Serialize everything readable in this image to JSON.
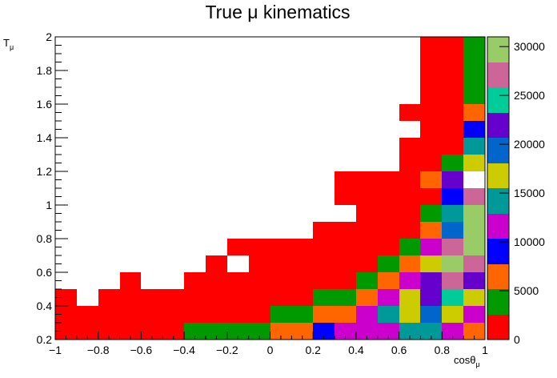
{
  "chart_data": {
    "type": "heatmap",
    "title": "True μ kinematics",
    "xlabel": {
      "main": "cosθ",
      "sub": "μ"
    },
    "ylabel": {
      "main": "T",
      "sub": "μ"
    },
    "xlim": [
      -1,
      1
    ],
    "ylim": [
      0.2,
      2
    ],
    "x_bins": 20,
    "y_bins": 18,
    "x_ticks": [
      -1,
      -0.8,
      -0.6,
      -0.4,
      -0.2,
      0,
      0.2,
      0.4,
      0.6,
      0.8,
      1
    ],
    "y_ticks": [
      0.2,
      0.4,
      0.6,
      0.8,
      1,
      1.2,
      1.4,
      1.6,
      1.8,
      2
    ],
    "x_tick_labels": [
      "−1",
      "−0.8",
      "−0.6",
      "−0.4",
      "−0.2",
      "0",
      "0.2",
      "0.4",
      "0.6",
      "0.8",
      "1"
    ],
    "y_tick_labels": [
      "0.2",
      "0.4",
      "0.6",
      "0.8",
      "1",
      "1.2",
      "1.4",
      "1.6",
      "1.8",
      "2"
    ],
    "zlim": [
      0,
      31000
    ],
    "z_ticks": [
      0,
      5000,
      10000,
      15000,
      20000,
      25000,
      30000
    ],
    "z_tick_labels": [
      "0",
      "5000",
      "10000",
      "15000",
      "20000",
      "25000",
      "30000"
    ],
    "palette": [
      "#ff0000",
      "#009900",
      "#ff6600",
      "#0000ff",
      "#cc00cc",
      "#009999",
      "#cccc00",
      "#0066cc",
      "#6600cc",
      "#00cc99",
      "#cc6699",
      "#99cc66"
    ],
    "cells_note": "cells listed row by row from bottom (y bin 0) to top; each row lists [x bin index, color level]",
    "rows": [
      [
        [
          0,
          0
        ],
        [
          1,
          0
        ],
        [
          2,
          0
        ],
        [
          3,
          0
        ],
        [
          4,
          0
        ],
        [
          5,
          0
        ],
        [
          6,
          1
        ],
        [
          7,
          1
        ],
        [
          8,
          1
        ],
        [
          9,
          1
        ],
        [
          10,
          2
        ],
        [
          11,
          2
        ],
        [
          12,
          3
        ],
        [
          13,
          4
        ],
        [
          14,
          4
        ],
        [
          15,
          4
        ],
        [
          16,
          5
        ],
        [
          17,
          5
        ],
        [
          18,
          4
        ],
        [
          19,
          2
        ]
      ],
      [
        [
          0,
          0
        ],
        [
          1,
          0
        ],
        [
          2,
          0
        ],
        [
          3,
          0
        ],
        [
          4,
          0
        ],
        [
          5,
          0
        ],
        [
          6,
          0
        ],
        [
          7,
          0
        ],
        [
          8,
          0
        ],
        [
          9,
          0
        ],
        [
          10,
          1
        ],
        [
          11,
          1
        ],
        [
          12,
          2
        ],
        [
          13,
          2
        ],
        [
          14,
          4
        ],
        [
          15,
          5
        ],
        [
          16,
          6
        ],
        [
          17,
          7
        ],
        [
          18,
          6
        ],
        [
          19,
          4
        ]
      ],
      [
        [
          0,
          0
        ],
        [
          2,
          0
        ],
        [
          3,
          0
        ],
        [
          4,
          0
        ],
        [
          5,
          0
        ],
        [
          6,
          0
        ],
        [
          7,
          0
        ],
        [
          8,
          0
        ],
        [
          9,
          0
        ],
        [
          10,
          0
        ],
        [
          11,
          0
        ],
        [
          12,
          1
        ],
        [
          13,
          1
        ],
        [
          14,
          2
        ],
        [
          15,
          4
        ],
        [
          16,
          6
        ],
        [
          17,
          8
        ],
        [
          18,
          9
        ],
        [
          19,
          6
        ]
      ],
      [
        [
          3,
          0
        ],
        [
          6,
          0
        ],
        [
          7,
          0
        ],
        [
          8,
          0
        ],
        [
          9,
          0
        ],
        [
          10,
          0
        ],
        [
          11,
          0
        ],
        [
          12,
          0
        ],
        [
          13,
          0
        ],
        [
          14,
          1
        ],
        [
          15,
          2
        ],
        [
          16,
          4
        ],
        [
          17,
          8
        ],
        [
          18,
          10
        ],
        [
          19,
          8
        ]
      ],
      [
        [
          7,
          0
        ],
        [
          9,
          0
        ],
        [
          10,
          0
        ],
        [
          11,
          0
        ],
        [
          12,
          0
        ],
        [
          13,
          0
        ],
        [
          14,
          0
        ],
        [
          15,
          1
        ],
        [
          16,
          2
        ],
        [
          17,
          6
        ],
        [
          18,
          11
        ],
        [
          19,
          10
        ]
      ],
      [
        [
          8,
          0
        ],
        [
          9,
          0
        ],
        [
          10,
          0
        ],
        [
          11,
          0
        ],
        [
          12,
          0
        ],
        [
          13,
          0
        ],
        [
          14,
          0
        ],
        [
          15,
          0
        ],
        [
          16,
          1
        ],
        [
          17,
          4
        ],
        [
          18,
          10
        ],
        [
          19,
          11
        ]
      ],
      [
        [
          12,
          0
        ],
        [
          13,
          0
        ],
        [
          14,
          0
        ],
        [
          15,
          0
        ],
        [
          16,
          0
        ],
        [
          17,
          2
        ],
        [
          18,
          7
        ],
        [
          19,
          11
        ]
      ],
      [
        [
          14,
          0
        ],
        [
          15,
          0
        ],
        [
          16,
          0
        ],
        [
          17,
          1
        ],
        [
          18,
          5
        ],
        [
          19,
          11
        ]
      ],
      [
        [
          13,
          0
        ],
        [
          14,
          0
        ],
        [
          15,
          0
        ],
        [
          16,
          0
        ],
        [
          17,
          0
        ],
        [
          18,
          3
        ],
        [
          19,
          10
        ]
      ],
      [
        [
          13,
          0
        ],
        [
          14,
          0
        ],
        [
          15,
          0
        ],
        [
          16,
          0
        ],
        [
          17,
          2
        ],
        [
          18,
          8
        ]
      ],
      [
        [
          16,
          0
        ],
        [
          17,
          0
        ],
        [
          18,
          1
        ],
        [
          19,
          6
        ]
      ],
      [
        [
          16,
          0
        ],
        [
          17,
          0
        ],
        [
          18,
          0
        ],
        [
          19,
          5
        ]
      ],
      [
        [
          17,
          0
        ],
        [
          18,
          0
        ],
        [
          19,
          3
        ]
      ],
      [
        [
          16,
          0
        ],
        [
          17,
          0
        ],
        [
          18,
          0
        ],
        [
          19,
          2
        ]
      ],
      [
        [
          17,
          0
        ],
        [
          18,
          0
        ],
        [
          19,
          1
        ]
      ],
      [
        [
          17,
          0
        ],
        [
          18,
          0
        ],
        [
          19,
          1
        ]
      ],
      [
        [
          17,
          0
        ],
        [
          18,
          0
        ],
        [
          19,
          1
        ]
      ],
      [
        [
          17,
          0
        ],
        [
          18,
          0
        ],
        [
          19,
          1
        ]
      ]
    ]
  }
}
